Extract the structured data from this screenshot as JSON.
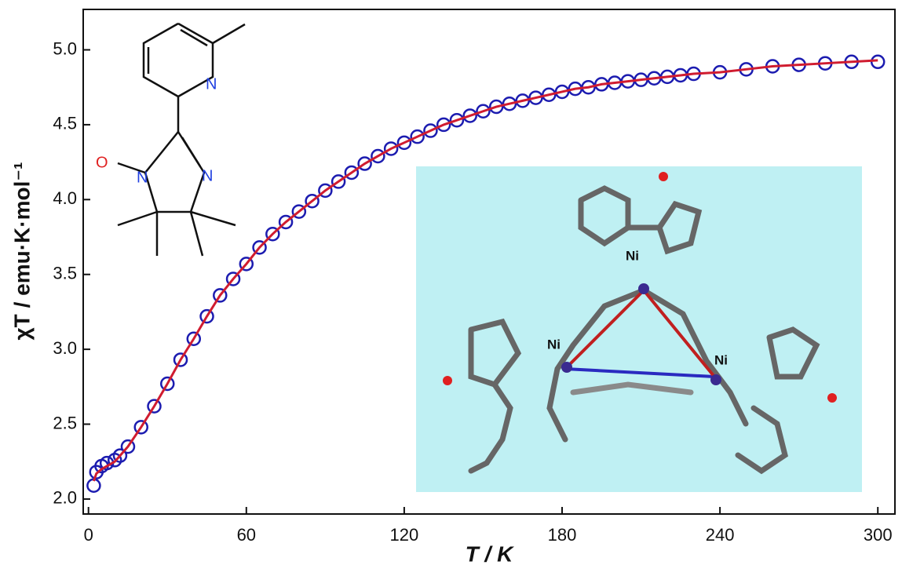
{
  "chart_data": {
    "type": "scatter",
    "x_label": "T / K",
    "y_label": "χT / emu·K·mol⁻¹",
    "xlim": [
      -2,
      306.5
    ],
    "ylim": [
      1.9,
      5.27
    ],
    "xticks": [
      0,
      60,
      120,
      180,
      240,
      300
    ],
    "yticks": [
      {
        "value": 2,
        "label": "2.0"
      },
      2.5,
      {
        "value": 3,
        "label": "3.0"
      },
      3.5,
      {
        "value": 4,
        "label": "4.0"
      },
      4.5,
      {
        "value": 5,
        "label": "5.0"
      }
    ],
    "x": [
      2,
      3,
      5,
      7,
      10,
      12,
      15,
      20,
      25,
      30,
      35,
      40,
      45,
      50,
      55,
      60,
      65,
      70,
      75,
      80,
      85,
      90,
      95,
      100,
      105,
      110,
      115,
      120,
      125,
      130,
      135,
      140,
      145,
      150,
      155,
      160,
      165,
      170,
      175,
      180,
      185,
      190,
      195,
      200,
      205,
      210,
      215,
      220,
      225,
      230,
      240,
      250,
      260,
      270,
      280,
      290,
      300
    ],
    "series": [
      {
        "color": "#1c1cb0",
        "values": [
          2.09,
          2.18,
          2.22,
          2.24,
          2.26,
          2.29,
          2.35,
          2.48,
          2.62,
          2.77,
          2.93,
          3.07,
          3.22,
          3.36,
          3.47,
          3.57,
          3.68,
          3.77,
          3.85,
          3.92,
          3.99,
          4.06,
          4.12,
          4.18,
          4.24,
          4.29,
          4.34,
          4.38,
          4.42,
          4.46,
          4.5,
          4.53,
          4.56,
          4.59,
          4.62,
          4.64,
          4.66,
          4.68,
          4.7,
          4.72,
          4.74,
          4.75,
          4.77,
          4.78,
          4.79,
          4.8,
          4.81,
          4.82,
          4.83,
          4.84,
          4.85,
          4.87,
          4.89,
          4.9,
          4.91,
          4.92,
          4.92
        ]
      },
      {
        "color": "#d01c30",
        "type": "line",
        "values": [
          2.12,
          2.17,
          2.2,
          2.22,
          2.25,
          2.29,
          2.35,
          2.48,
          2.62,
          2.77,
          2.93,
          3.07,
          3.22,
          3.36,
          3.47,
          3.57,
          3.68,
          3.77,
          3.85,
          3.92,
          3.99,
          4.06,
          4.12,
          4.18,
          4.24,
          4.29,
          4.34,
          4.38,
          4.42,
          4.46,
          4.5,
          4.53,
          4.56,
          4.59,
          4.62,
          4.64,
          4.66,
          4.68,
          4.7,
          4.72,
          4.74,
          4.75,
          4.77,
          4.78,
          4.79,
          4.8,
          4.81,
          4.82,
          4.83,
          4.84,
          4.85,
          4.87,
          4.89,
          4.9,
          4.91,
          4.92,
          4.93
        ]
      }
    ],
    "annotations": [
      "N",
      "O",
      "N",
      "N",
      "Ni",
      "Ni",
      "Ni"
    ]
  }
}
